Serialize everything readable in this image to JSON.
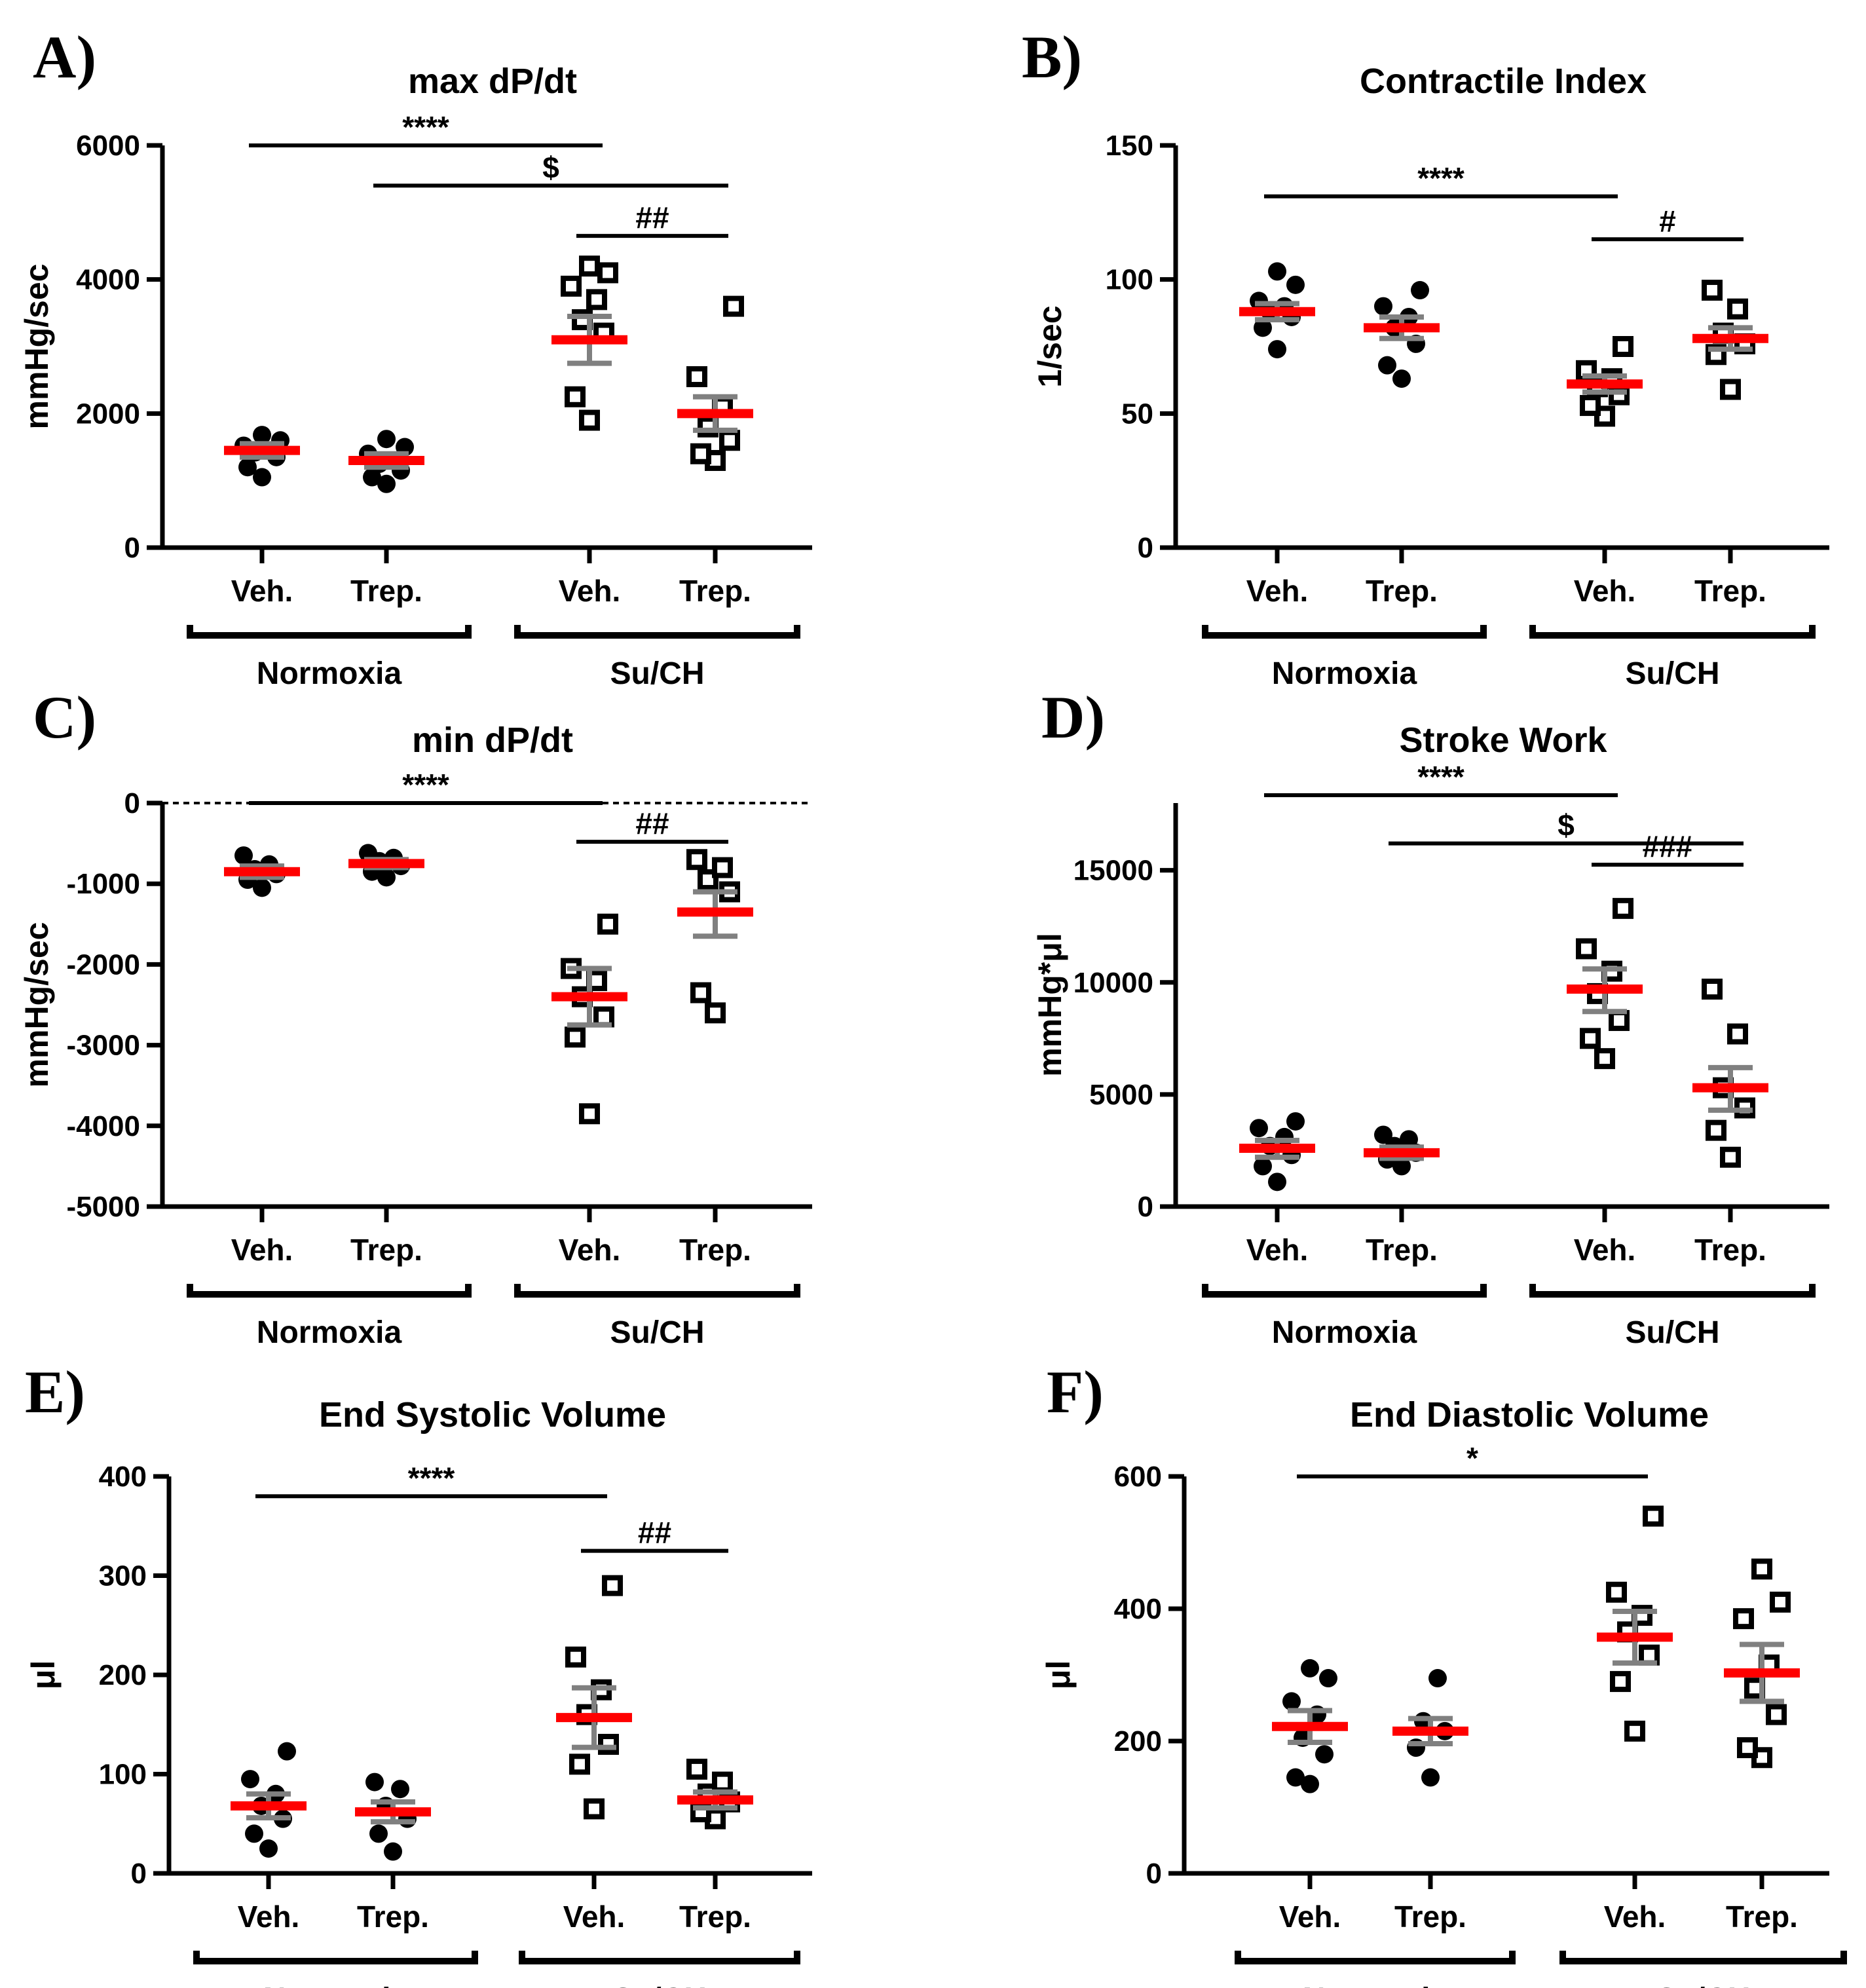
{
  "figure": {
    "x_groups": [
      "Normoxia",
      "Su/CH"
    ],
    "x_treatments": [
      "Veh.",
      "Trep.",
      "Veh.",
      "Trep."
    ],
    "colors": {
      "axis": "#000000",
      "mean_line": "#ff0000",
      "sem_bar": "#808080",
      "marker": "#000000"
    }
  },
  "chart_data": [
    {
      "panel": "A)",
      "type": "scatter",
      "title": "max dP/dt",
      "ylabel": "mmHg/sec",
      "ylim": [
        0,
        6000
      ],
      "yticks": [
        0,
        2000,
        4000,
        6000
      ],
      "ytick_labels": [
        "0",
        "2000",
        "4000",
        "6000"
      ],
      "zero_dotted": false,
      "groups": [
        {
          "label": "Veh.",
          "condition": "Normoxia",
          "marker": "filled-circle",
          "mean": 1450,
          "sem_low": 1350,
          "sem_high": 1550,
          "points": [
            1050,
            1200,
            1350,
            1420,
            1450,
            1520,
            1600,
            1680
          ]
        },
        {
          "label": "Trep.",
          "condition": "Normoxia",
          "marker": "filled-circle",
          "mean": 1300,
          "sem_low": 1200,
          "sem_high": 1400,
          "points": [
            950,
            1050,
            1150,
            1250,
            1300,
            1400,
            1500,
            1620
          ]
        },
        {
          "label": "Veh.",
          "condition": "Su/CH",
          "marker": "open-square",
          "mean": 3100,
          "sem_low": 2750,
          "sem_high": 3450,
          "points": [
            1900,
            2250,
            3200,
            3400,
            3700,
            3900,
            4100,
            4200
          ]
        },
        {
          "label": "Trep.",
          "condition": "Su/CH",
          "marker": "open-square",
          "mean": 2000,
          "sem_low": 1750,
          "sem_high": 2250,
          "points": [
            1300,
            1400,
            1600,
            1800,
            2100,
            2550,
            3600
          ]
        }
      ],
      "significance": [
        {
          "label": "****",
          "from": 0,
          "to": 2,
          "y": 6000,
          "top": false
        },
        {
          "label": "$",
          "from": 1,
          "to": 3,
          "y": 5400,
          "top": false
        },
        {
          "label": "##",
          "from": 2,
          "to": 3,
          "y": 4650,
          "top": false
        }
      ]
    },
    {
      "panel": "B)",
      "type": "scatter",
      "title": "Contractile Index",
      "ylabel": "1/sec",
      "ylim": [
        0,
        150
      ],
      "yticks": [
        0,
        50,
        100,
        150
      ],
      "ytick_labels": [
        "0",
        "50",
        "100",
        "150"
      ],
      "zero_dotted": false,
      "groups": [
        {
          "label": "Veh.",
          "condition": "Normoxia",
          "marker": "filled-circle",
          "mean": 88,
          "sem_low": 85,
          "sem_high": 91,
          "points": [
            74,
            82,
            86,
            88,
            90,
            92,
            98,
            103
          ]
        },
        {
          "label": "Trep.",
          "condition": "Normoxia",
          "marker": "filled-circle",
          "mean": 82,
          "sem_low": 78,
          "sem_high": 86,
          "points": [
            63,
            68,
            76,
            82,
            86,
            90,
            96
          ]
        },
        {
          "label": "Veh.",
          "condition": "Su/CH",
          "marker": "open-square",
          "mean": 61,
          "sem_low": 58,
          "sem_high": 64,
          "points": [
            49,
            53,
            57,
            60,
            63,
            66,
            75
          ]
        },
        {
          "label": "Trep.",
          "condition": "Su/CH",
          "marker": "open-square",
          "mean": 78,
          "sem_low": 74,
          "sem_high": 82,
          "points": [
            59,
            72,
            76,
            80,
            89,
            96
          ]
        }
      ],
      "significance": [
        {
          "label": "****",
          "from": 0,
          "to": 2,
          "y": 131,
          "top": false
        },
        {
          "label": "#",
          "from": 2,
          "to": 3,
          "y": 115,
          "top": false
        }
      ]
    },
    {
      "panel": "C)",
      "type": "scatter",
      "title": "min dP/dt",
      "ylabel": "mmHg/sec",
      "ylim": [
        -5000,
        0
      ],
      "yticks": [
        -5000,
        -4000,
        -3000,
        -2000,
        -1000,
        0
      ],
      "ytick_labels": [
        "-5000",
        "-4000",
        "-3000",
        "-2000",
        "-1000",
        "0"
      ],
      "zero_dotted": true,
      "groups": [
        {
          "label": "Veh.",
          "condition": "Normoxia",
          "marker": "filled-circle",
          "mean": -850,
          "sem_low": -920,
          "sem_high": -780,
          "points": [
            -1050,
            -950,
            -880,
            -820,
            -760,
            -650
          ]
        },
        {
          "label": "Trep.",
          "condition": "Normoxia",
          "marker": "filled-circle",
          "mean": -750,
          "sem_low": -800,
          "sem_high": -700,
          "points": [
            -920,
            -850,
            -780,
            -720,
            -680,
            -620
          ]
        },
        {
          "label": "Veh.",
          "condition": "Su/CH",
          "marker": "open-square",
          "mean": -2400,
          "sem_low": -2750,
          "sem_high": -2050,
          "points": [
            -3850,
            -2900,
            -2650,
            -2400,
            -2200,
            -2050,
            -1500
          ]
        },
        {
          "label": "Trep.",
          "condition": "Su/CH",
          "marker": "open-square",
          "mean": -1350,
          "sem_low": -1650,
          "sem_high": -1100,
          "points": [
            -2600,
            -2350,
            -1100,
            -950,
            -800,
            -700
          ]
        }
      ],
      "significance": [
        {
          "label": "****",
          "from": 0,
          "to": 2,
          "y": 0,
          "top": false
        },
        {
          "label": "##",
          "from": 2,
          "to": 3,
          "y": -480,
          "top": false
        }
      ]
    },
    {
      "panel": "D)",
      "type": "scatter",
      "title": "Stroke Work",
      "ylabel": "mmHg*μl",
      "ylim": [
        0,
        18000
      ],
      "yticks": [
        0,
        5000,
        10000,
        15000
      ],
      "ytick_labels": [
        "0",
        "5000",
        "10000",
        "15000"
      ],
      "zero_dotted": false,
      "groups": [
        {
          "label": "Veh.",
          "condition": "Normoxia",
          "marker": "filled-circle",
          "mean": 2600,
          "sem_low": 2200,
          "sem_high": 2950,
          "points": [
            1100,
            1800,
            2300,
            2700,
            3100,
            3500,
            3800
          ]
        },
        {
          "label": "Trep.",
          "condition": "Normoxia",
          "marker": "filled-circle",
          "mean": 2400,
          "sem_low": 2150,
          "sem_high": 2650,
          "points": [
            1800,
            2100,
            2400,
            2700,
            3000,
            3200
          ]
        },
        {
          "label": "Veh.",
          "condition": "Su/CH",
          "marker": "open-square",
          "mean": 9700,
          "sem_low": 8700,
          "sem_high": 10600,
          "points": [
            6600,
            7500,
            8300,
            9500,
            10500,
            11500,
            13300
          ]
        },
        {
          "label": "Trep.",
          "condition": "Su/CH",
          "marker": "open-square",
          "mean": 5300,
          "sem_low": 4300,
          "sem_high": 6200,
          "points": [
            2200,
            3400,
            4400,
            5300,
            7700,
            9700
          ]
        }
      ],
      "significance": [
        {
          "label": "****",
          "from": 0,
          "to": 2,
          "y": 18000,
          "top": true
        },
        {
          "label": "$",
          "from": 1,
          "to": 3,
          "y": 16200,
          "top": false
        },
        {
          "label": "###",
          "from": 2,
          "to": 3,
          "y": 15250,
          "top": false
        }
      ]
    },
    {
      "panel": "E)",
      "type": "scatter",
      "title": "End Systolic Volume",
      "ylabel": "μl",
      "ylim": [
        0,
        400
      ],
      "yticks": [
        0,
        100,
        200,
        300,
        400
      ],
      "ytick_labels": [
        "0",
        "100",
        "200",
        "300",
        "400"
      ],
      "zero_dotted": false,
      "groups": [
        {
          "label": "Veh.",
          "condition": "Normoxia",
          "marker": "filled-circle",
          "mean": 68,
          "sem_low": 56,
          "sem_high": 80,
          "points": [
            25,
            40,
            55,
            68,
            80,
            95,
            123
          ]
        },
        {
          "label": "Trep.",
          "condition": "Normoxia",
          "marker": "filled-circle",
          "mean": 62,
          "sem_low": 52,
          "sem_high": 72,
          "points": [
            22,
            40,
            55,
            68,
            85,
            92
          ]
        },
        {
          "label": "Veh.",
          "condition": "Su/CH",
          "marker": "open-square",
          "mean": 157,
          "sem_low": 127,
          "sem_high": 187,
          "points": [
            65,
            110,
            130,
            160,
            185,
            218,
            290
          ]
        },
        {
          "label": "Trep.",
          "condition": "Su/CH",
          "marker": "open-square",
          "mean": 74,
          "sem_low": 66,
          "sem_high": 82,
          "points": [
            55,
            62,
            72,
            80,
            92,
            105
          ]
        }
      ],
      "significance": [
        {
          "label": "****",
          "from": 0,
          "to": 2,
          "y": 380,
          "top": false
        },
        {
          "label": "##",
          "from": 2,
          "to": 3,
          "y": 325,
          "top": false
        }
      ]
    },
    {
      "panel": "F)",
      "type": "scatter",
      "title": "End Diastolic Volume",
      "ylabel": "μl",
      "ylim": [
        0,
        600
      ],
      "yticks": [
        0,
        200,
        400,
        600
      ],
      "ytick_labels": [
        "0",
        "200",
        "400",
        "600"
      ],
      "zero_dotted": false,
      "groups": [
        {
          "label": "Veh.",
          "condition": "Normoxia",
          "marker": "filled-circle",
          "mean": 222,
          "sem_low": 198,
          "sem_high": 246,
          "points": [
            135,
            145,
            180,
            205,
            240,
            260,
            295,
            310
          ]
        },
        {
          "label": "Trep.",
          "condition": "Normoxia",
          "marker": "filled-circle",
          "mean": 215,
          "sem_low": 196,
          "sem_high": 234,
          "points": [
            145,
            190,
            215,
            230,
            295
          ]
        },
        {
          "label": "Veh.",
          "condition": "Su/CH",
          "marker": "open-square",
          "mean": 357,
          "sem_low": 318,
          "sem_high": 396,
          "points": [
            215,
            290,
            330,
            365,
            390,
            425,
            540
          ]
        },
        {
          "label": "Trep.",
          "condition": "Su/CH",
          "marker": "open-square",
          "mean": 303,
          "sem_low": 260,
          "sem_high": 346,
          "points": [
            175,
            190,
            240,
            280,
            315,
            385,
            410,
            460
          ]
        }
      ],
      "significance": [
        {
          "label": "*",
          "from": 0,
          "to": 2,
          "y": 600,
          "top": false
        }
      ]
    }
  ]
}
